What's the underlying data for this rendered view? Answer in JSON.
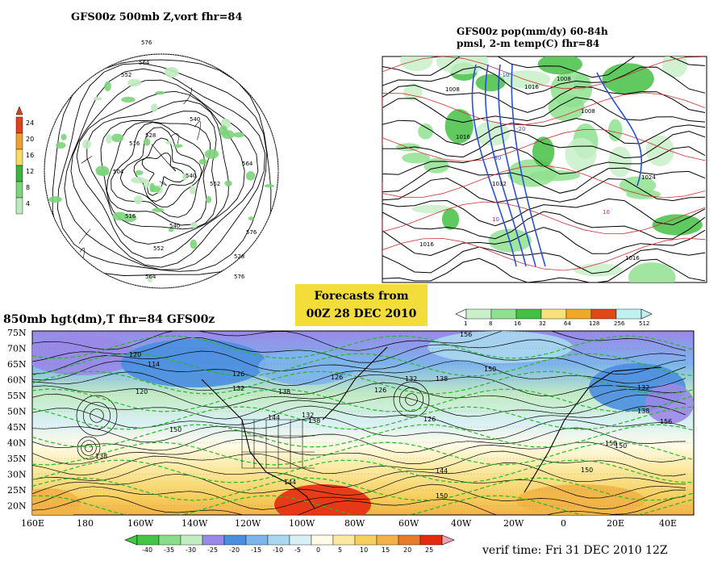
{
  "panels": {
    "top_left": {
      "title": "GFS00z  500mb Z,vort    fhr=84",
      "legend_ticks": [
        "24",
        "20",
        "16",
        "12",
        "8",
        "4"
      ],
      "legend_colors": [
        "#e0401c",
        "#f0a030",
        "#f7dd66",
        "#3cb33c",
        "#7bd47b",
        "#bfeabf"
      ],
      "contour_labels": [
        "576",
        "564",
        "552",
        "540",
        "528",
        "516",
        "504",
        "540",
        "552",
        "564",
        "576",
        "528",
        "516",
        "540",
        "552",
        "564",
        "576"
      ]
    },
    "top_right": {
      "title_line1": "GFS00z pop(mm/dy) 60-84h",
      "title_line2": "pmsl, 2-m temp(C)  fhr=84",
      "legend_ticks": [
        "1",
        "8",
        "16",
        "32",
        "64",
        "128",
        "256",
        "512"
      ],
      "legend_colors": [
        "#c9f0c9",
        "#8fe08f",
        "#44c044",
        "#f7e27a",
        "#f0a828",
        "#e04818",
        "#c0f0f0"
      ],
      "contour_labels": [
        "1008",
        "1016",
        "1024",
        "1032",
        "1008",
        "1016",
        "1016",
        "-10",
        "-20",
        "-30",
        "10",
        "10",
        "1016",
        "1008"
      ]
    },
    "bottom": {
      "title": "850mb hgt(dm),T   fhr=84 GFS00z",
      "lat_labels": [
        "75N",
        "70N",
        "65N",
        "60N",
        "55N",
        "50N",
        "45N",
        "40N",
        "35N",
        "30N",
        "25N",
        "20N"
      ],
      "lon_labels": [
        "160E",
        "180",
        "160W",
        "140W",
        "120W",
        "100W",
        "80W",
        "60W",
        "40W",
        "20W",
        "0",
        "20E",
        "40E"
      ],
      "legend_ticks": [
        "-40",
        "-35",
        "-30",
        "-25",
        "-20",
        "-15",
        "-10",
        "-5",
        "0",
        "5",
        "10",
        "15",
        "20",
        "25"
      ],
      "legend_colors": [
        "#44c544",
        "#88dd88",
        "#c4ecc4",
        "#9a88e8",
        "#4a8ee0",
        "#7db4ec",
        "#a8d8ef",
        "#d8f0f5",
        "#fffbe6",
        "#fbe9a0",
        "#f7cf5e",
        "#f2b247",
        "#e87a2a",
        "#e62a10",
        "#f6a0b0"
      ],
      "contour_labels": [
        "120",
        "114",
        "120",
        "126",
        "132",
        "138",
        "144",
        "132",
        "126",
        "126",
        "150",
        "132",
        "138",
        "150",
        "138",
        "126",
        "144",
        "150",
        "150",
        "156",
        "132",
        "138",
        "150",
        "156",
        "150",
        "138",
        "144"
      ]
    }
  },
  "forecast_badge": {
    "line1": "Forecasts from",
    "line2": "00Z 28 DEC 2010"
  },
  "verif_time": "verif time: Fri 31 DEC 2010 12Z"
}
